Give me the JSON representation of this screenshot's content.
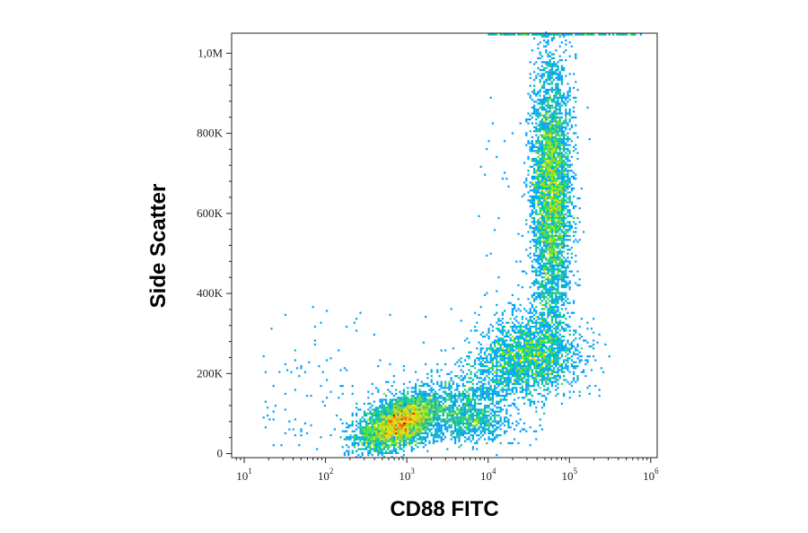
{
  "chart_data": {
    "type": "scatter",
    "title": "",
    "xlabel": "CD88 FITC",
    "ylabel": "Side Scatter",
    "x_scale": "log",
    "xlim": [
      7,
      1200000
    ],
    "ylim": [
      -10000,
      1050000
    ],
    "x_ticks": [
      {
        "value": 10,
        "base": "10",
        "exp": "1"
      },
      {
        "value": 100,
        "base": "10",
        "exp": "2"
      },
      {
        "value": 1000,
        "base": "10",
        "exp": "3"
      },
      {
        "value": 10000,
        "base": "10",
        "exp": "4"
      },
      {
        "value": 100000,
        "base": "10",
        "exp": "5"
      },
      {
        "value": 1000000,
        "base": "10",
        "exp": "6"
      }
    ],
    "y_ticks": [
      {
        "value": 0,
        "label": "0"
      },
      {
        "value": 200000,
        "label": "200K"
      },
      {
        "value": 400000,
        "label": "400K"
      },
      {
        "value": 600000,
        "label": "600K"
      },
      {
        "value": 800000,
        "label": "800K"
      },
      {
        "value": 1000000,
        "label": "1,0M"
      }
    ],
    "grid": false,
    "legend": "none",
    "color_scale": "density (blue-green-yellow-red)",
    "populations": [
      {
        "x": 800,
        "y": 75000,
        "x_spread_decades": 0.25,
        "y_spread": 30000,
        "relative_density": "highest"
      },
      {
        "x": 60000,
        "y": 650000,
        "x_spread_decades": 0.12,
        "y_spread": 170000,
        "relative_density": "high"
      },
      {
        "x": 35000,
        "y": 240000,
        "x_spread_decades": 0.3,
        "y_spread": 45000,
        "relative_density": "medium"
      },
      {
        "x": 7000,
        "y": 80000,
        "x_spread_decades": 0.22,
        "y_spread": 25000,
        "relative_density": "low"
      }
    ]
  }
}
